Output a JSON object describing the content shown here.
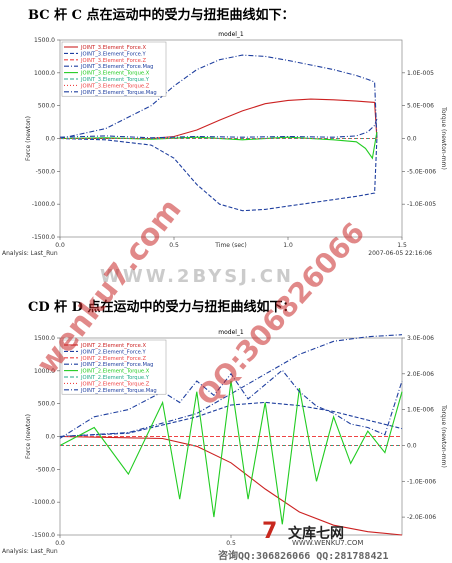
{
  "headings": {
    "bc": "BC 杆 C 点在运动中的受力与扭拒曲线如下：",
    "cd": "CD 杆 D 点在运动中的受力与扭拒曲线如下："
  },
  "watermarks": {
    "diag_left": "wenku7.com",
    "diag_right": "QQ:306826066",
    "band": "WWW.2BYSJ.CN",
    "logo_name": "文库七网",
    "logo_url": "WWW.WENKU7.COM",
    "contact": "咨询QQ:306826066 QQ:281788421"
  },
  "chart_data": [
    {
      "type": "line",
      "title": "model_1",
      "xlabel": "Time (sec)",
      "ylabel": "Force (newton)",
      "y2label": "Torque (newton-mm)",
      "xlim": [
        0,
        1.5
      ],
      "ylim": [
        -1500,
        1500
      ],
      "y2lim": [
        -1.5e-05,
        1.5e-05
      ],
      "xticks": [
        "0.0",
        "0.5",
        "1.0",
        "1.5"
      ],
      "yticks": [
        "1500.0",
        "1000.0",
        "500.0",
        "0.0",
        "-500.0",
        "-1000.0",
        "-1500.0"
      ],
      "y2ticks": [
        "1.0E-005",
        "5.0E-006",
        "0.0",
        "-5.0E-006",
        "-1.0E-005"
      ],
      "analysis": "Analysis:  Last_Run",
      "timestamp": "2007-06-05 22:16:06",
      "legend_position": "top-left",
      "series": [
        {
          "name": "JOINT_3.Element_Force.X",
          "color": "#cc2222",
          "style": "solid",
          "axis": "left",
          "x": [
            0,
            0.4,
            0.5,
            0.6,
            0.7,
            0.8,
            0.9,
            1.0,
            1.1,
            1.2,
            1.3,
            1.38,
            1.39
          ],
          "y": [
            0,
            0,
            30,
            130,
            280,
            420,
            530,
            580,
            600,
            590,
            570,
            550,
            0
          ]
        },
        {
          "name": "JOINT_3.Element_Force.Y",
          "color": "#1f3f9f",
          "style": "dash",
          "axis": "left",
          "x": [
            0,
            0.2,
            0.4,
            0.5,
            0.6,
            0.7,
            0.8,
            0.9,
            1.0,
            1.1,
            1.2,
            1.3,
            1.35,
            1.38,
            1.39
          ],
          "y": [
            0,
            -20,
            -100,
            -300,
            -700,
            -1000,
            -1100,
            -1080,
            -1030,
            -980,
            -930,
            -880,
            -850,
            -830,
            0
          ]
        },
        {
          "name": "JOINT_3.Element_Force.Z",
          "color": "#ee4444",
          "style": "dash",
          "axis": "left",
          "x": [
            0,
            1.39
          ],
          "y": [
            0,
            0
          ]
        },
        {
          "name": "JOINT_3.Element_Force.Mag",
          "color": "#1f3f9f",
          "style": "dashdot",
          "axis": "left",
          "x": [
            0,
            0.2,
            0.4,
            0.5,
            0.6,
            0.7,
            0.8,
            0.9,
            1.0,
            1.1,
            1.2,
            1.3,
            1.35,
            1.38,
            1.39
          ],
          "y": [
            0,
            150,
            500,
            800,
            1050,
            1200,
            1270,
            1250,
            1190,
            1120,
            1050,
            960,
            900,
            860,
            0
          ]
        },
        {
          "name": "JOINT_3.Element_Torque.X",
          "color": "#22cc22",
          "style": "solid",
          "axis": "right",
          "x": [
            0,
            0.2,
            0.4,
            0.6,
            0.8,
            1.0,
            1.2,
            1.3,
            1.34,
            1.37,
            1.39
          ],
          "y": [
            0,
            1e-07,
            -1e-07,
            2e-07,
            -2e-07,
            2e-07,
            -2e-07,
            -5e-07,
            -1.5e-06,
            -3e-06,
            1e-06
          ]
        },
        {
          "name": "JOINT_3.Element_Torque.Y",
          "color": "#22aa88",
          "style": "dash",
          "axis": "right",
          "x": [
            0,
            1.39
          ],
          "y": [
            0,
            0
          ]
        },
        {
          "name": "JOINT_3.Element_Torque.Z",
          "color": "#ee4444",
          "style": "dot",
          "axis": "right",
          "x": [
            0,
            1.39
          ],
          "y": [
            0,
            0
          ]
        },
        {
          "name": "JOINT_3.Element_Torque.Mag",
          "color": "#1f3f9f",
          "style": "dashdot",
          "axis": "right",
          "x": [
            0,
            0.2,
            0.4,
            0.6,
            0.8,
            1.0,
            1.2,
            1.3,
            1.35,
            1.38,
            1.39
          ],
          "y": [
            2e-07,
            4e-07,
            1e-07,
            3e-07,
            2e-07,
            3e-07,
            2e-07,
            4e-07,
            1e-06,
            2e-06,
            3e-06
          ]
        }
      ]
    },
    {
      "type": "line",
      "title": "model_1",
      "xlabel": "",
      "ylabel": "Force (newton)",
      "y2label": "Torque (newton-mm)",
      "xlim": [
        0,
        1.0
      ],
      "ylim": [
        -1500,
        1500
      ],
      "y2lim": [
        -2.5e-06,
        3e-06
      ],
      "xticks": [
        "0.0",
        "0.5"
      ],
      "yticks": [
        "1500.0",
        "1000.0",
        "500.0",
        "0.0",
        "-500.0",
        "-1000.0",
        "-1500.0"
      ],
      "y2ticks": [
        "3.0E-006",
        "2.0E-006",
        "1.0E-006",
        "0.0",
        "-1.0E-006",
        "-2.0E-006"
      ],
      "analysis": "Analysis:  Last_Run",
      "legend_position": "top-left",
      "series": [
        {
          "name": "JOINT_2.Element_Force.X",
          "color": "#cc2222",
          "style": "solid",
          "axis": "left",
          "x": [
            0,
            0.3,
            0.4,
            0.5,
            0.6,
            0.7,
            0.8,
            0.9,
            1.0
          ],
          "y": [
            0,
            -30,
            -150,
            -400,
            -800,
            -1150,
            -1350,
            -1450,
            -1500
          ]
        },
        {
          "name": "JOINT_2.Element_Force.Y",
          "color": "#1f3f9f",
          "style": "dash",
          "axis": "left",
          "x": [
            0,
            0.2,
            0.4,
            0.5,
            0.6,
            0.7,
            0.8,
            0.9,
            1.0
          ],
          "y": [
            0,
            50,
            300,
            480,
            520,
            470,
            380,
            250,
            120
          ]
        },
        {
          "name": "JOINT_2.Element_Force.Z",
          "color": "#ee4444",
          "style": "dash",
          "axis": "left",
          "x": [
            0,
            1.0
          ],
          "y": [
            0,
            0
          ]
        },
        {
          "name": "JOINT_2.Element_Force.Mag",
          "color": "#1f3f9f",
          "style": "dashdot",
          "axis": "left",
          "x": [
            0,
            0.2,
            0.4,
            0.5,
            0.6,
            0.7,
            0.8,
            0.9,
            1.0
          ],
          "y": [
            0,
            60,
            350,
            650,
            950,
            1250,
            1450,
            1520,
            1550
          ]
        },
        {
          "name": "JOINT_2.Element_Torque.X",
          "color": "#22cc22",
          "style": "solid",
          "axis": "right",
          "x": [
            0,
            0.1,
            0.2,
            0.3,
            0.35,
            0.4,
            0.45,
            0.5,
            0.55,
            0.6,
            0.65,
            0.7,
            0.75,
            0.8,
            0.85,
            0.9,
            0.95,
            1.0
          ],
          "y": [
            0,
            5e-07,
            -8e-07,
            1.2e-06,
            -1.5e-06,
            1.5e-06,
            -2e-06,
            1.8e-06,
            -1.5e-06,
            1.2e-06,
            -2.2e-06,
            1.6e-06,
            -1e-06,
            8e-07,
            -5e-07,
            4e-07,
            -2e-07,
            1.5e-06
          ]
        },
        {
          "name": "JOINT_2.Element_Torque.Y",
          "color": "#22aa88",
          "style": "dash",
          "axis": "right",
          "x": [
            0,
            1.0
          ],
          "y": [
            0,
            0
          ]
        },
        {
          "name": "JOINT_2.Element_Torque.Z",
          "color": "#ee4444",
          "style": "dot",
          "axis": "right",
          "x": [
            0,
            1.0
          ],
          "y": [
            0,
            0
          ]
        },
        {
          "name": "JOINT_2.Element_Torque.Mag",
          "color": "#1f3f9f",
          "style": "dashdot",
          "axis": "right",
          "x": [
            0,
            0.1,
            0.2,
            0.3,
            0.35,
            0.4,
            0.45,
            0.5,
            0.55,
            0.6,
            0.65,
            0.7,
            0.75,
            0.8,
            0.85,
            0.9,
            0.95,
            1.0
          ],
          "y": [
            2e-07,
            8e-07,
            1e-06,
            1.5e-06,
            1.2e-06,
            1.8e-06,
            1.4e-06,
            2e-06,
            1.3e-06,
            1.7e-06,
            2.1e-06,
            1.5e-06,
            1.1e-06,
            9e-07,
            6e-07,
            5e-07,
            3e-07,
            1.8e-06
          ]
        }
      ]
    }
  ]
}
